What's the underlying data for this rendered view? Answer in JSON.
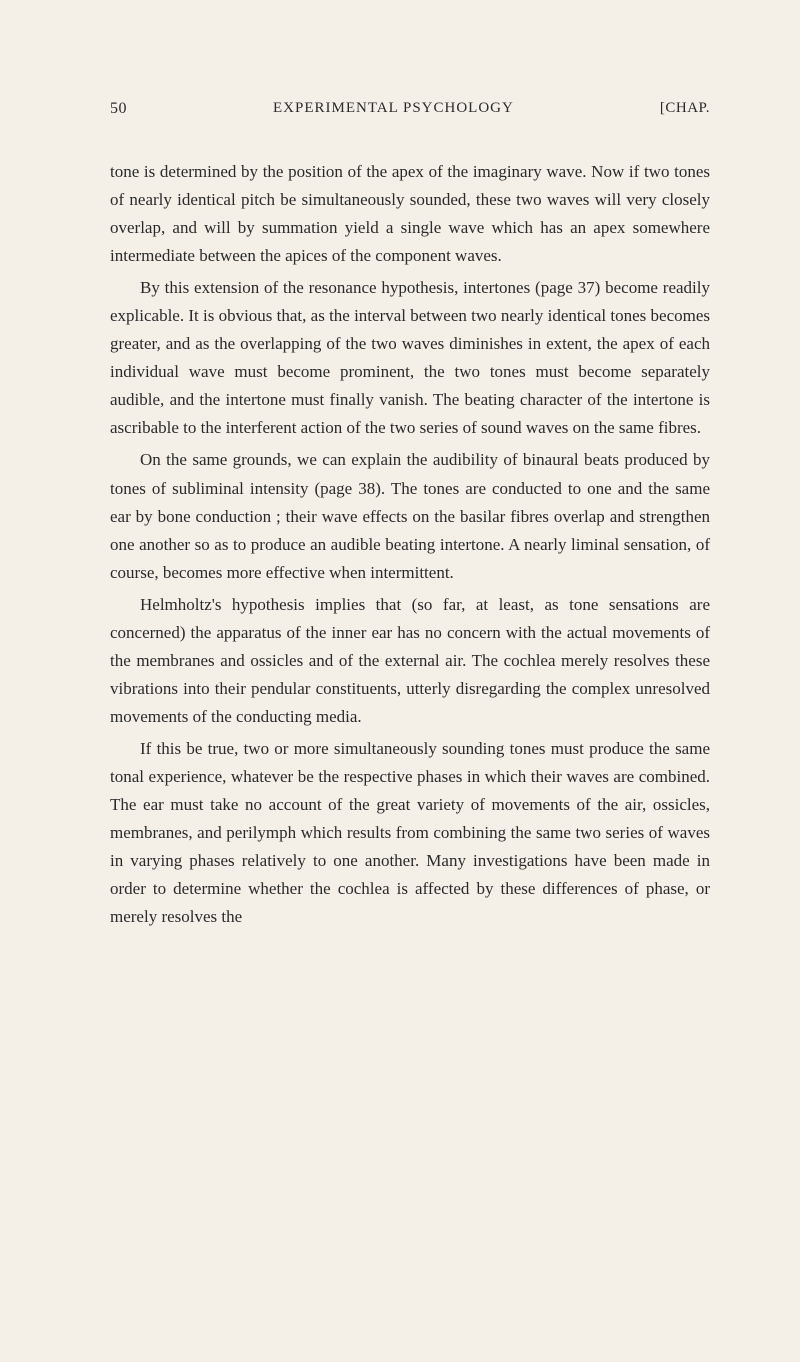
{
  "header": {
    "page_number": "50",
    "title": "EXPERIMENTAL PSYCHOLOGY",
    "chapter": "[CHAP."
  },
  "paragraphs": [
    "tone is determined by the position of the apex of the imaginary wave. Now if two tones of nearly identical pitch be simultaneously sounded, these two waves will very closely overlap, and will by summation yield a single wave which has an apex somewhere intermediate between the apices of the component waves.",
    "By this extension of the resonance hypothesis, intertones (page 37) become readily explicable. It is obvious that, as the interval between two nearly identical tones becomes greater, and as the overlapping of the two waves diminishes in extent, the apex of each individual wave must become prominent, the two tones must become separately audible, and the intertone must finally vanish. The beating character of the intertone is ascribable to the interferent action of the two series of sound waves on the same fibres.",
    "On the same grounds, we can explain the audibility of binaural beats produced by tones of subliminal intensity (page 38). The tones are conducted to one and the same ear by bone conduction ; their wave effects on the basilar fibres overlap and strengthen one another so as to produce an audible beating intertone. A nearly liminal sensation, of course, becomes more effective when intermittent.",
    "Helmholtz's hypothesis implies that (so far, at least, as tone sensations are concerned) the apparatus of the inner ear has no concern with the actual movements of the membranes and ossicles and of the external air. The cochlea merely resolves these vibrations into their pendular constituents, utterly disregarding the complex unresolved movements of the conducting media.",
    "If this be true, two or more simultaneously sounding tones must produce the same tonal experience, whatever be the respective phases in which their waves are combined. The ear must take no account of the great variety of movements of the air, ossicles, membranes, and perilymph which results from combining the same two series of waves in varying phases relatively to one another. Many investigations have been made in order to determine whether the cochlea is affected by these differences of phase, or merely resolves the"
  ]
}
